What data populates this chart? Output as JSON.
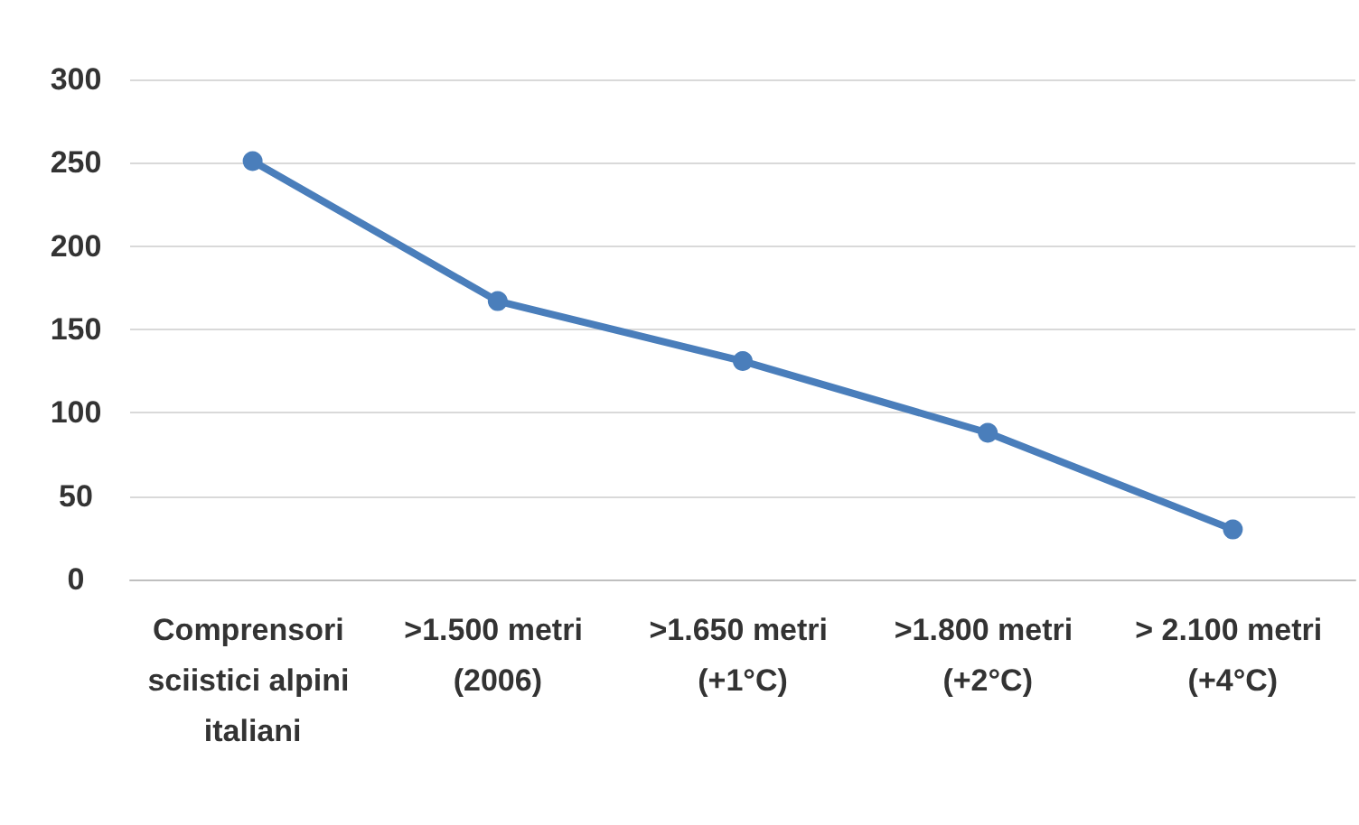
{
  "chart_data": {
    "type": "line",
    "categories": [
      "Comprensori sciistici alpini italiani",
      ">1.500 metri (2006)",
      ">1.650 metri (+1°C)",
      ">1.800 metri (+2°C)",
      "> 2.100 metri (+4°C)"
    ],
    "series": [
      {
        "color": "#4a7ebb",
        "values": [
          251,
          167,
          131,
          88,
          30
        ]
      }
    ],
    "ylim": [
      0,
      300
    ],
    "yticks": [
      0,
      50,
      100,
      150,
      200,
      250,
      300
    ],
    "grid": "y",
    "marker": "circle",
    "line_style": "solid"
  }
}
